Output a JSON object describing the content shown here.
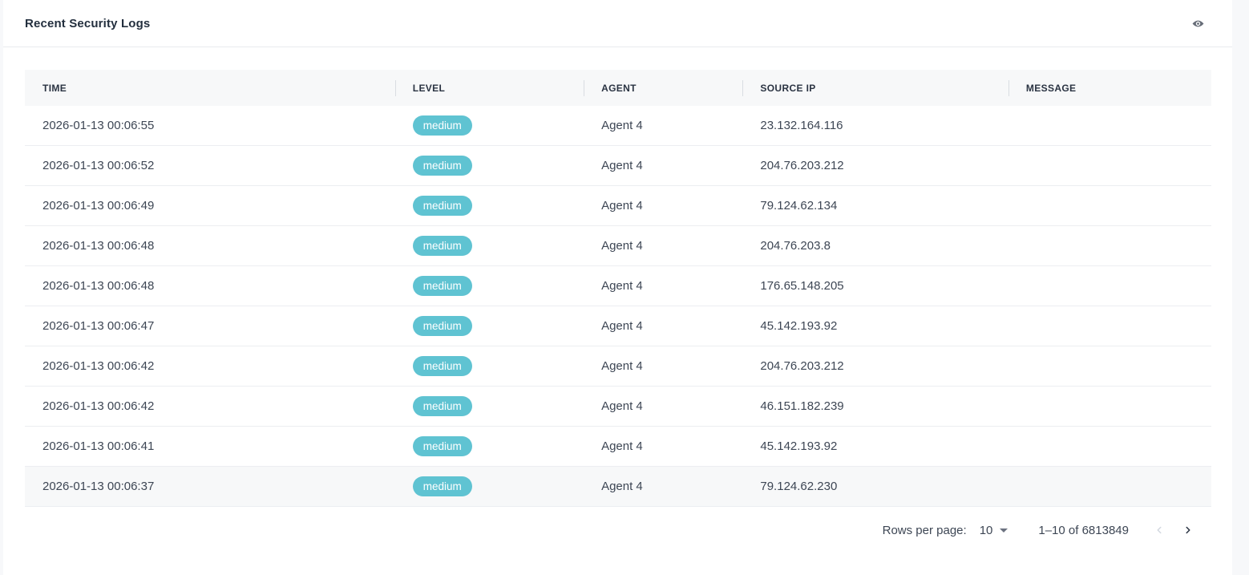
{
  "header": {
    "title": "Recent Security Logs"
  },
  "table": {
    "columns": [
      "TIME",
      "LEVEL",
      "AGENT",
      "SOURCE IP",
      "MESSAGE"
    ],
    "rows": [
      {
        "time": "2026-01-13 00:06:55",
        "level": "medium",
        "agent": "Agent 4",
        "source_ip": "23.132.164.116",
        "message": ""
      },
      {
        "time": "2026-01-13 00:06:52",
        "level": "medium",
        "agent": "Agent 4",
        "source_ip": "204.76.203.212",
        "message": ""
      },
      {
        "time": "2026-01-13 00:06:49",
        "level": "medium",
        "agent": "Agent 4",
        "source_ip": "79.124.62.134",
        "message": ""
      },
      {
        "time": "2026-01-13 00:06:48",
        "level": "medium",
        "agent": "Agent 4",
        "source_ip": "204.76.203.8",
        "message": ""
      },
      {
        "time": "2026-01-13 00:06:48",
        "level": "medium",
        "agent": "Agent 4",
        "source_ip": "176.65.148.205",
        "message": ""
      },
      {
        "time": "2026-01-13 00:06:47",
        "level": "medium",
        "agent": "Agent 4",
        "source_ip": "45.142.193.92",
        "message": ""
      },
      {
        "time": "2026-01-13 00:06:42",
        "level": "medium",
        "agent": "Agent 4",
        "source_ip": "204.76.203.212",
        "message": ""
      },
      {
        "time": "2026-01-13 00:06:42",
        "level": "medium",
        "agent": "Agent 4",
        "source_ip": "46.151.182.239",
        "message": ""
      },
      {
        "time": "2026-01-13 00:06:41",
        "level": "medium",
        "agent": "Agent 4",
        "source_ip": "45.142.193.92",
        "message": ""
      },
      {
        "time": "2026-01-13 00:06:37",
        "level": "medium",
        "agent": "Agent 4",
        "source_ip": "79.124.62.230",
        "message": ""
      }
    ],
    "highlighted_row_index": 9
  },
  "pagination": {
    "rows_per_page_label": "Rows per page:",
    "rows_per_page_value": "10",
    "range_label": "1–10 of 6813849",
    "prev_enabled": false,
    "next_enabled": true
  },
  "colors": {
    "badge_medium_bg": "#5fc3d2",
    "badge_text": "#ffffff",
    "header_bg": "#f7f8f9",
    "title_text": "#232f3e",
    "body_text": "#3d4654"
  }
}
